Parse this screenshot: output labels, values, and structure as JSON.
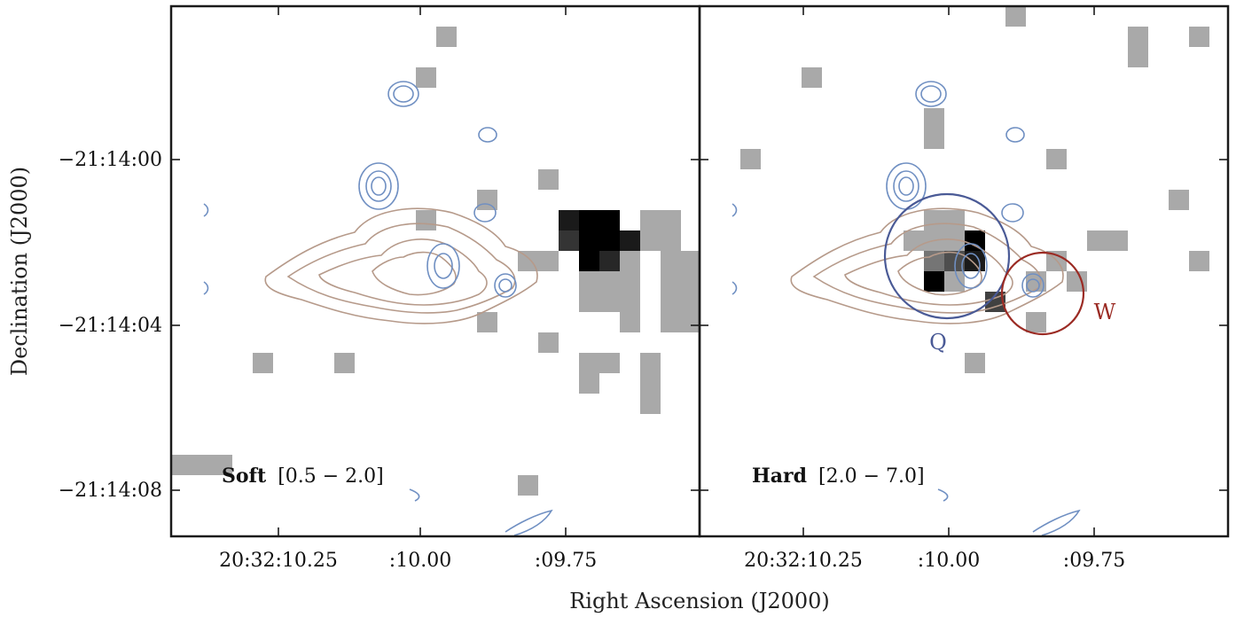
{
  "chart_data": {
    "type": "image",
    "xlabel": "Right Ascension (J2000)",
    "ylabel": "Declination (J2000)",
    "x_ticks": [
      "20:32:10.25",
      ":10.00",
      ":09.75"
    ],
    "y_ticks": [
      "−21:14:00",
      "−21:14:04",
      "−21:14:08"
    ],
    "panels": [
      {
        "band_name": "Soft",
        "band_range": "[0.5 − 2.0]",
        "pixel_size_px": 23,
        "pixels": [
          {
            "ix": 0,
            "iy": 22,
            "v": 0.35
          },
          {
            "ix": 1,
            "iy": 22,
            "v": 0.35
          },
          {
            "ix": 2,
            "iy": 22,
            "v": 0.35
          },
          {
            "ix": 4,
            "iy": 17,
            "v": 0.35
          },
          {
            "ix": 4,
            "iy": 26,
            "v": 0.35
          },
          {
            "ix": 8,
            "iy": 17,
            "v": 0.35
          },
          {
            "ix": 12,
            "iy": 3,
            "v": 0.35
          },
          {
            "ix": 12,
            "iy": 10,
            "v": 0.35
          },
          {
            "ix": 13,
            "iy": 1,
            "v": 0.35
          },
          {
            "ix": 15,
            "iy": 9,
            "v": 0.35
          },
          {
            "ix": 15,
            "iy": 15,
            "v": 0.35
          },
          {
            "ix": 17,
            "iy": 12,
            "v": 0.35
          },
          {
            "ix": 17,
            "iy": 23,
            "v": 0.35
          },
          {
            "ix": 18,
            "iy": 8,
            "v": 0.35
          },
          {
            "ix": 18,
            "iy": 12,
            "v": 0.35
          },
          {
            "ix": 18,
            "iy": 16,
            "v": 0.35
          },
          {
            "ix": 18,
            "iy": 26,
            "v": 0.35
          },
          {
            "ix": 20,
            "iy": 13,
            "v": 0.35
          },
          {
            "ix": 20,
            "iy": 14,
            "v": 0.35
          },
          {
            "ix": 20,
            "iy": 17,
            "v": 0.35
          },
          {
            "ix": 20,
            "iy": 18,
            "v": 0.35
          },
          {
            "ix": 21,
            "iy": 13,
            "v": 0.35
          },
          {
            "ix": 21,
            "iy": 14,
            "v": 0.35
          },
          {
            "ix": 21,
            "iy": 17,
            "v": 0.35
          },
          {
            "ix": 22,
            "iy": 13,
            "v": 0.35
          },
          {
            "ix": 22,
            "iy": 14,
            "v": 0.35
          },
          {
            "ix": 22,
            "iy": 15,
            "v": 0.35
          },
          {
            "ix": 23,
            "iy": 10,
            "v": 0.35
          },
          {
            "ix": 23,
            "iy": 17,
            "v": 0.35
          },
          {
            "ix": 23,
            "iy": 18,
            "v": 0.35
          },
          {
            "ix": 23,
            "iy": 19,
            "v": 0.35
          },
          {
            "ix": 24,
            "iy": 10,
            "v": 0.35
          },
          {
            "ix": 24,
            "iy": 11,
            "v": 0.35
          },
          {
            "ix": 24,
            "iy": 12,
            "v": 0.35
          },
          {
            "ix": 24,
            "iy": 13,
            "v": 0.35
          },
          {
            "ix": 24,
            "iy": 14,
            "v": 0.35
          },
          {
            "ix": 24,
            "iy": 15,
            "v": 0.35
          },
          {
            "ix": 25,
            "iy": 12,
            "v": 0.35
          },
          {
            "ix": 25,
            "iy": 13,
            "v": 0.35
          },
          {
            "ix": 25,
            "iy": 14,
            "v": 0.35
          },
          {
            "ix": 25,
            "iy": 15,
            "v": 0.35
          },
          {
            "ix": 26,
            "iy": 5,
            "v": 0.35
          },
          {
            "ix": 26,
            "iy": 14,
            "v": 0.35
          },
          {
            "ix": 28,
            "iy": 21,
            "v": 0.35
          },
          {
            "ix": 31,
            "iy": 3,
            "v": 0.35
          },
          {
            "ix": 31,
            "iy": 4,
            "v": 0.35
          },
          {
            "ix": 32,
            "iy": 11,
            "v": 0.35
          },
          {
            "ix": 34,
            "iy": 16,
            "v": 0.35
          },
          {
            "ix": 36,
            "iy": 6,
            "v": 0.35
          },
          {
            "ix": 34,
            "iy": 23,
            "v": 0.35
          },
          {
            "ix": 38,
            "iy": 10,
            "v": 0.35
          },
          {
            "ix": 41,
            "iy": 24,
            "v": 0.35
          },
          {
            "ix": 44,
            "iy": 13,
            "v": 0.35
          },
          {
            "ix": 45,
            "iy": 21,
            "v": 0.35
          },
          {
            "ix": 50,
            "iy": 0,
            "v": 0.35
          },
          {
            "ix": 51,
            "iy": 0,
            "v": 0.35
          },
          {
            "ix": 51,
            "iy": 8,
            "v": 0.35
          },
          {
            "ix": 51,
            "iy": 13,
            "v": 0.35
          },
          {
            "ix": 52,
            "iy": 0,
            "v": 0.35
          },
          {
            "ix": 52,
            "iy": 26,
            "v": 0.35
          },
          {
            "ix": 53,
            "iy": 25,
            "v": 0.35
          },
          {
            "ix": 19,
            "iy": 10,
            "v": 0.9
          },
          {
            "ix": 20,
            "iy": 10,
            "v": 1.0
          },
          {
            "ix": 21,
            "iy": 10,
            "v": 1.0
          },
          {
            "ix": 21,
            "iy": 11,
            "v": 1.0
          },
          {
            "ix": 22,
            "iy": 11,
            "v": 0.9
          },
          {
            "ix": 20,
            "iy": 11,
            "v": 1.0
          },
          {
            "ix": 20,
            "iy": 12,
            "v": 1.0
          },
          {
            "ix": 21,
            "iy": 12,
            "v": 0.85
          },
          {
            "ix": 19,
            "iy": 11,
            "v": 0.8
          },
          {
            "ix": 23,
            "iy": 11,
            "v": 0.35
          },
          {
            "ix": 22,
            "iy": 12,
            "v": 0.35
          }
        ]
      },
      {
        "band_name": "Hard",
        "band_range": "[2.0 − 7.0]",
        "pixel_size_px": 23,
        "pixels": [
          {
            "ix": 2,
            "iy": 7,
            "v": 0.35
          },
          {
            "ix": 5,
            "iy": 3,
            "v": 0.35
          },
          {
            "ix": 11,
            "iy": 5,
            "v": 0.35
          },
          {
            "ix": 11,
            "iy": 6,
            "v": 0.35
          },
          {
            "ix": 13,
            "iy": 17,
            "v": 0.35
          },
          {
            "ix": 15,
            "iy": 0,
            "v": 0.35
          },
          {
            "ix": 17,
            "iy": 12,
            "v": 0.35
          },
          {
            "ix": 18,
            "iy": 13,
            "v": 0.35
          },
          {
            "ix": 17,
            "iy": 7,
            "v": 0.35
          },
          {
            "ix": 20,
            "iy": 11,
            "v": 0.35
          },
          {
            "ix": 21,
            "iy": 1,
            "v": 0.35
          },
          {
            "ix": 21,
            "iy": 2,
            "v": 0.35
          },
          {
            "ix": 23,
            "iy": 9,
            "v": 0.35
          },
          {
            "ix": 24,
            "iy": 1,
            "v": 0.35
          },
          {
            "ix": 24,
            "iy": 12,
            "v": 0.35
          },
          {
            "ix": 19,
            "iy": 11,
            "v": 0.35
          },
          {
            "ix": 10,
            "iy": 11,
            "v": 0.35
          },
          {
            "ix": 11,
            "iy": 11,
            "v": 0.35
          },
          {
            "ix": 11,
            "iy": 10,
            "v": 0.35
          },
          {
            "ix": 12,
            "iy": 10,
            "v": 0.35
          },
          {
            "ix": 11,
            "iy": 12,
            "v": 0.55
          },
          {
            "ix": 12,
            "iy": 11,
            "v": 0.35
          },
          {
            "ix": 11,
            "iy": 13,
            "v": 1.0
          },
          {
            "ix": 13,
            "iy": 11,
            "v": 1.0
          },
          {
            "ix": 13,
            "iy": 12,
            "v": 0.9
          },
          {
            "ix": 14,
            "iy": 14,
            "v": 0.75
          },
          {
            "ix": 12,
            "iy": 12,
            "v": 0.7
          },
          {
            "ix": 12,
            "iy": 13,
            "v": 0.35
          },
          {
            "ix": 16,
            "iy": 13,
            "v": 0.35
          },
          {
            "ix": 16,
            "iy": 15,
            "v": 0.35
          },
          {
            "ix": 27,
            "iy": 1,
            "v": 0.35
          }
        ]
      }
    ],
    "markers": [
      {
        "label": "Q",
        "color": "#4a5a96"
      },
      {
        "label": "W",
        "color": "#9b2b24"
      }
    ],
    "colors": {
      "soft_contour": "#b69a8a",
      "radio_contour": "#6f8fc2",
      "frame": "#1a1a1a",
      "gray_base": "#a9a9a9"
    }
  }
}
